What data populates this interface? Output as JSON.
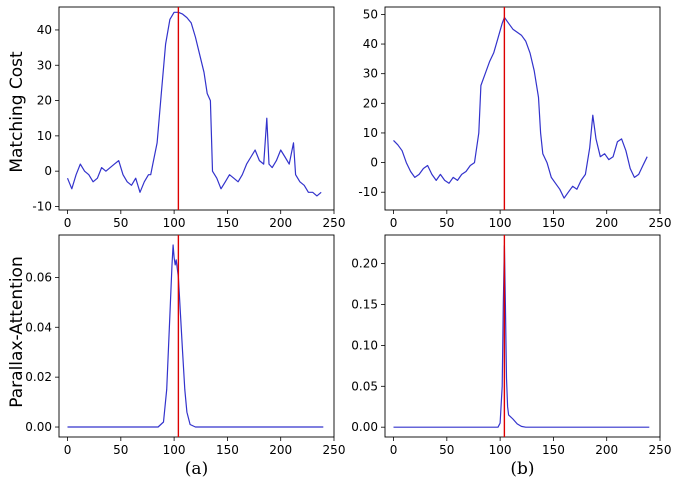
{
  "row_labels": [
    "Matching Cost",
    "Parallax-Attention"
  ],
  "chart_data": [
    {
      "type": "line",
      "panel": "top-left",
      "ylabel": "Matching Cost",
      "caption": "",
      "xlim": [
        -8,
        250
      ],
      "ylim": [
        -11,
        46.5
      ],
      "xticks": [
        0,
        50,
        100,
        150,
        200,
        250
      ],
      "yticks": [
        -10,
        0,
        10,
        20,
        30,
        40
      ],
      "vline": 104,
      "line_color": "#3333cc",
      "vline_color": "#dd0000",
      "series": [
        {
          "points": [
            [
              0,
              -2
            ],
            [
              4,
              -5
            ],
            [
              8,
              -1
            ],
            [
              12,
              2
            ],
            [
              16,
              0
            ],
            [
              20,
              -1
            ],
            [
              24,
              -3
            ],
            [
              28,
              -2
            ],
            [
              32,
              1
            ],
            [
              36,
              0
            ],
            [
              40,
              1
            ],
            [
              44,
              2
            ],
            [
              48,
              3
            ],
            [
              52,
              -1
            ],
            [
              56,
              -3
            ],
            [
              60,
              -4
            ],
            [
              64,
              -2
            ],
            [
              68,
              -6
            ],
            [
              72,
              -3
            ],
            [
              76,
              -1
            ],
            [
              78,
              -1
            ],
            [
              80,
              2
            ],
            [
              84,
              8
            ],
            [
              88,
              22
            ],
            [
              92,
              36
            ],
            [
              96,
              43
            ],
            [
              100,
              45
            ],
            [
              104,
              45
            ],
            [
              108,
              44.5
            ],
            [
              112,
              43.5
            ],
            [
              116,
              42
            ],
            [
              120,
              38
            ],
            [
              124,
              33
            ],
            [
              128,
              28
            ],
            [
              131,
              22
            ],
            [
              134,
              20
            ],
            [
              136,
              0
            ],
            [
              140,
              -2
            ],
            [
              144,
              -5
            ],
            [
              148,
              -3
            ],
            [
              152,
              -1
            ],
            [
              156,
              -2
            ],
            [
              160,
              -3
            ],
            [
              164,
              -1
            ],
            [
              168,
              2
            ],
            [
              172,
              4
            ],
            [
              176,
              6
            ],
            [
              180,
              3
            ],
            [
              184,
              2
            ],
            [
              187,
              15
            ],
            [
              189,
              2
            ],
            [
              192,
              1
            ],
            [
              196,
              3
            ],
            [
              200,
              6
            ],
            [
              204,
              4
            ],
            [
              208,
              2
            ],
            [
              212,
              8
            ],
            [
              214,
              -1
            ],
            [
              218,
              -3
            ],
            [
              222,
              -4
            ],
            [
              226,
              -6
            ],
            [
              230,
              -6
            ],
            [
              234,
              -7
            ],
            [
              238,
              -6
            ]
          ]
        }
      ]
    },
    {
      "type": "line",
      "panel": "top-right",
      "ylabel": "",
      "caption": "",
      "xlim": [
        -8,
        250
      ],
      "ylim": [
        -16,
        52.5
      ],
      "xticks": [
        0,
        50,
        100,
        150,
        200,
        250
      ],
      "yticks": [
        -10,
        0,
        10,
        20,
        30,
        40,
        50
      ],
      "vline": 104,
      "line_color": "#3333cc",
      "vline_color": "#dd0000",
      "series": [
        {
          "points": [
            [
              0,
              7.5
            ],
            [
              4,
              6
            ],
            [
              8,
              4
            ],
            [
              12,
              0
            ],
            [
              16,
              -3
            ],
            [
              20,
              -5
            ],
            [
              24,
              -4
            ],
            [
              28,
              -2
            ],
            [
              32,
              -1
            ],
            [
              36,
              -4
            ],
            [
              40,
              -6
            ],
            [
              44,
              -4
            ],
            [
              48,
              -6
            ],
            [
              52,
              -7
            ],
            [
              56,
              -5
            ],
            [
              60,
              -6
            ],
            [
              64,
              -4
            ],
            [
              68,
              -3
            ],
            [
              72,
              -1
            ],
            [
              76,
              0
            ],
            [
              80,
              10
            ],
            [
              82,
              26
            ],
            [
              86,
              30
            ],
            [
              90,
              34
            ],
            [
              94,
              37
            ],
            [
              98,
              42
            ],
            [
              102,
              47
            ],
            [
              104,
              49
            ],
            [
              108,
              47
            ],
            [
              112,
              45
            ],
            [
              116,
              44
            ],
            [
              120,
              43
            ],
            [
              124,
              41
            ],
            [
              128,
              37
            ],
            [
              132,
              31
            ],
            [
              136,
              22
            ],
            [
              138,
              10
            ],
            [
              140,
              3
            ],
            [
              144,
              0
            ],
            [
              148,
              -5
            ],
            [
              152,
              -7
            ],
            [
              156,
              -9
            ],
            [
              160,
              -12
            ],
            [
              164,
              -10
            ],
            [
              168,
              -8
            ],
            [
              172,
              -9
            ],
            [
              176,
              -6
            ],
            [
              180,
              -4
            ],
            [
              184,
              5
            ],
            [
              187,
              16
            ],
            [
              190,
              8
            ],
            [
              194,
              2
            ],
            [
              198,
              3
            ],
            [
              202,
              1
            ],
            [
              206,
              2
            ],
            [
              210,
              7
            ],
            [
              214,
              8
            ],
            [
              218,
              4
            ],
            [
              222,
              -2
            ],
            [
              226,
              -5
            ],
            [
              230,
              -4
            ],
            [
              234,
              -1
            ],
            [
              238,
              2
            ]
          ]
        }
      ]
    },
    {
      "type": "line",
      "panel": "bottom-left",
      "ylabel": "Parallax-Attention",
      "caption": "(a)",
      "xlim": [
        -8,
        250
      ],
      "ylim": [
        -0.004,
        0.077
      ],
      "xticks": [
        0,
        50,
        100,
        150,
        200,
        250
      ],
      "xtick_labels": [
        "0",
        "50",
        "100",
        "150",
        "200",
        "250"
      ],
      "yticks": [
        0.0,
        0.02,
        0.04,
        0.06
      ],
      "ytick_labels": [
        "0.00",
        "0.02",
        "0.04",
        "0.06"
      ],
      "vline": 104,
      "line_color": "#3333cc",
      "vline_color": "#dd0000",
      "series": [
        {
          "points": [
            [
              0,
              0
            ],
            [
              85,
              0
            ],
            [
              90,
              0.002
            ],
            [
              93,
              0.015
            ],
            [
              96,
              0.045
            ],
            [
              98,
              0.065
            ],
            [
              99,
              0.073
            ],
            [
              100,
              0.068
            ],
            [
              101,
              0.065
            ],
            [
              102,
              0.067
            ],
            [
              104,
              0.06
            ],
            [
              106,
              0.045
            ],
            [
              108,
              0.03
            ],
            [
              110,
              0.015
            ],
            [
              112,
              0.006
            ],
            [
              115,
              0.001
            ],
            [
              120,
              0
            ],
            [
              240,
              0
            ]
          ]
        }
      ]
    },
    {
      "type": "line",
      "panel": "bottom-right",
      "ylabel": "",
      "caption": "(b)",
      "xlim": [
        -8,
        250
      ],
      "ylim": [
        -0.012,
        0.235
      ],
      "xticks": [
        0,
        50,
        100,
        150,
        200,
        250
      ],
      "xtick_labels": [
        "0",
        "50",
        "100",
        "150",
        "200",
        "250"
      ],
      "yticks": [
        0.0,
        0.05,
        0.1,
        0.15,
        0.2
      ],
      "ytick_labels": [
        "0.00",
        "0.05",
        "0.10",
        "0.15",
        "0.20"
      ],
      "vline": 104,
      "line_color": "#3333cc",
      "vline_color": "#dd0000",
      "series": [
        {
          "points": [
            [
              0,
              0
            ],
            [
              98,
              0
            ],
            [
              100,
              0.005
            ],
            [
              102,
              0.05
            ],
            [
              103,
              0.15
            ],
            [
              104,
              0.222
            ],
            [
              105,
              0.15
            ],
            [
              106,
              0.06
            ],
            [
              107,
              0.025
            ],
            [
              108,
              0.015
            ],
            [
              112,
              0.01
            ],
            [
              116,
              0.004
            ],
            [
              120,
              0.001
            ],
            [
              124,
              0
            ],
            [
              240,
              0
            ]
          ]
        }
      ]
    }
  ]
}
